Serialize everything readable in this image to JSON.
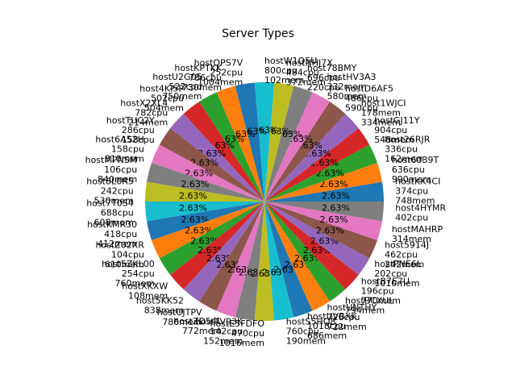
{
  "chart_data": {
    "type": "pie",
    "title": "Server Types",
    "start_angle_deg": 0,
    "counterclock": true,
    "slice_percent_label": "2.63%",
    "colors": [
      "#1f77b4",
      "#ff7f0e",
      "#2ca02c",
      "#d62728",
      "#9467bd",
      "#8c564b",
      "#e377c2",
      "#7f7f7f",
      "#bcbd22",
      "#17becf"
    ],
    "slices": [
      {
        "name": "hostKK4CI",
        "cpu": "374cpu",
        "mem": "748mem",
        "value": 1
      },
      {
        "name": "host6039T",
        "cpu": "636cpu",
        "mem": "990mem",
        "value": 1
      },
      {
        "name": "host26RJR",
        "cpu": "336cpu",
        "mem": "162mem",
        "value": 1
      },
      {
        "name": "hostGJ11Y",
        "cpu": "904cpu",
        "mem": "548mem",
        "value": 1
      },
      {
        "name": "host1WJCI",
        "cpu": "178mem",
        "mem": "334mem",
        "value": 1
      },
      {
        "name": "hostD6AF5",
        "cpu": "486cpu",
        "mem": "590cpu",
        "value": 1
      },
      {
        "name": "hostHV3A3",
        "cpu": "332mem",
        "mem": "580mem",
        "value": 1
      },
      {
        "name": "host78BMY",
        "cpu": "696cpu",
        "mem": "220cpu",
        "value": 1
      },
      {
        "name": "hostNHJ7X",
        "cpu": "484cpu",
        "mem": "372mem",
        "value": 1
      },
      {
        "name": "hostW1Q5U",
        "cpu": "800cpu",
        "mem": "102mem",
        "value": 1
      },
      {
        "name": "hostQPS7V",
        "cpu": "252cpu",
        "mem": "1004mem",
        "value": 1
      },
      {
        "name": "hostKPTKK",
        "cpu": "786cpu",
        "mem": "730mem",
        "value": 1
      },
      {
        "name": "hostU2G05",
        "cpu": "522cpu",
        "mem": "750mem",
        "value": 1
      },
      {
        "name": "host4KI5P",
        "cpu": "502cpu",
        "mem": "504mem",
        "value": 1
      },
      {
        "name": "hostX2XL4",
        "cpu": "782cpu",
        "mem": "214mem",
        "value": 1
      },
      {
        "name": "hostTUC2Y",
        "cpu": "286cpu",
        "mem": "158cpu",
        "value": 1
      },
      {
        "name": "host6A52H",
        "cpu": "158cpu",
        "mem": "810mem",
        "value": 1
      },
      {
        "name": "hostMPNSM",
        "cpu": "106cpu",
        "mem": "840mem",
        "value": 1
      },
      {
        "name": "host8L0R5",
        "cpu": "242cpu",
        "mem": "530mem",
        "value": 1
      },
      {
        "name": "host7T0S4",
        "cpu": "688cpu",
        "mem": "608mem",
        "value": 1
      },
      {
        "name": "hostKMR30",
        "cpu": "418cpu",
        "mem": "412mem",
        "value": 1
      },
      {
        "name": "hostZ02XR",
        "cpu": "104cpu",
        "mem": "610mem",
        "value": 1
      },
      {
        "name": "host5ZKL00",
        "cpu": "254cpu",
        "mem": "760mem",
        "value": 1
      },
      {
        "name": "hostXKXW",
        "cpu": "108mem",
        "mem": "",
        "value": 1
      },
      {
        "name": "host5KK52",
        "cpu": "838mem",
        "mem": "",
        "value": 1
      },
      {
        "name": "hostUJTPV",
        "cpu": "786mem",
        "mem": "",
        "value": 1
      },
      {
        "name": "hostZD54L",
        "cpu": "772mem",
        "mem": "",
        "value": 1
      },
      {
        "name": "hostTV93K",
        "cpu": "142cpu",
        "mem": "152mem",
        "value": 1
      },
      {
        "name": "hostE5FDFO",
        "cpu": "470cpu",
        "mem": "1016mem",
        "value": 1
      },
      {
        "name": "hostS5HQ8",
        "cpu": "760cpu",
        "mem": "190mem",
        "value": 1
      },
      {
        "name": "hostUVBXK",
        "cpu": "1018cpu",
        "mem": "686mem",
        "value": 1
      },
      {
        "name": "hostUNTHY",
        "cpu": "726cpu",
        "mem": "722mem",
        "value": 1
      },
      {
        "name": "hostBCXUL",
        "cpu": "794mem",
        "mem": "",
        "value": 1
      },
      {
        "name": "hostB7E7U",
        "cpu": "196cpu",
        "mem": "770mem",
        "value": 1
      },
      {
        "name": "hostPNE6L",
        "cpu": "202cpu",
        "mem": "1010mem",
        "value": 1
      },
      {
        "name": "host5914J",
        "cpu": "462cpu",
        "mem": "242mem",
        "value": 1
      },
      {
        "name": "hostMAHRP",
        "cpu": "",
        "mem": "314mem",
        "value": 1
      },
      {
        "name": "host4HYMR",
        "cpu": "402cpu",
        "mem": "",
        "value": 1
      }
    ]
  }
}
